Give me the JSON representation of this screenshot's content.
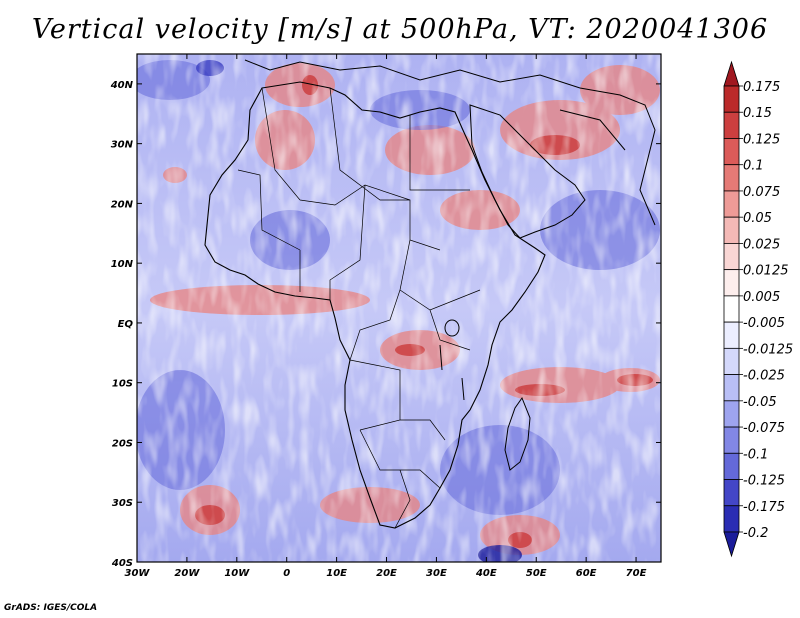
{
  "title": "Vertical velocity [m/s] at 500hPa, VT: 2020041306",
  "credit": "GrADS: IGES/COLA",
  "map": {
    "region": "Africa",
    "lon_range": [
      -30,
      75
    ],
    "lat_range": [
      -40,
      45
    ],
    "lat_labels": [
      "40N",
      "30N",
      "20N",
      "10N",
      "EQ",
      "10S",
      "20S",
      "30S",
      "40S"
    ],
    "lat_values": [
      40,
      30,
      20,
      10,
      0,
      -10,
      -20,
      -30,
      -40
    ],
    "lon_labels": [
      "30W",
      "20W",
      "10W",
      "0",
      "10E",
      "20E",
      "30E",
      "40E",
      "50E",
      "60E",
      "70E"
    ],
    "lon_values": [
      -30,
      -20,
      -10,
      0,
      10,
      20,
      30,
      40,
      50,
      60,
      70
    ]
  },
  "colorbar": {
    "labels": [
      "0.175",
      "0.15",
      "0.125",
      "0.1",
      "0.075",
      "0.05",
      "0.025",
      "0.0125",
      "0.005",
      "-0.005",
      "-0.0125",
      "-0.025",
      "-0.05",
      "-0.075",
      "-0.1",
      "-0.125",
      "-0.175",
      "-0.2"
    ],
    "colors": [
      "#a01820",
      "#bb2a2a",
      "#cc3f3f",
      "#db5b59",
      "#e57a76",
      "#ee9b97",
      "#f4b9b6",
      "#f9d6d4",
      "#fdeeed",
      "#ffffff",
      "#eceeff",
      "#d4d8fb",
      "#b9bff6",
      "#9ea4ef",
      "#8287e5",
      "#6469d9",
      "#4346c7",
      "#2a2db3",
      "#1a1c9a"
    ]
  }
}
